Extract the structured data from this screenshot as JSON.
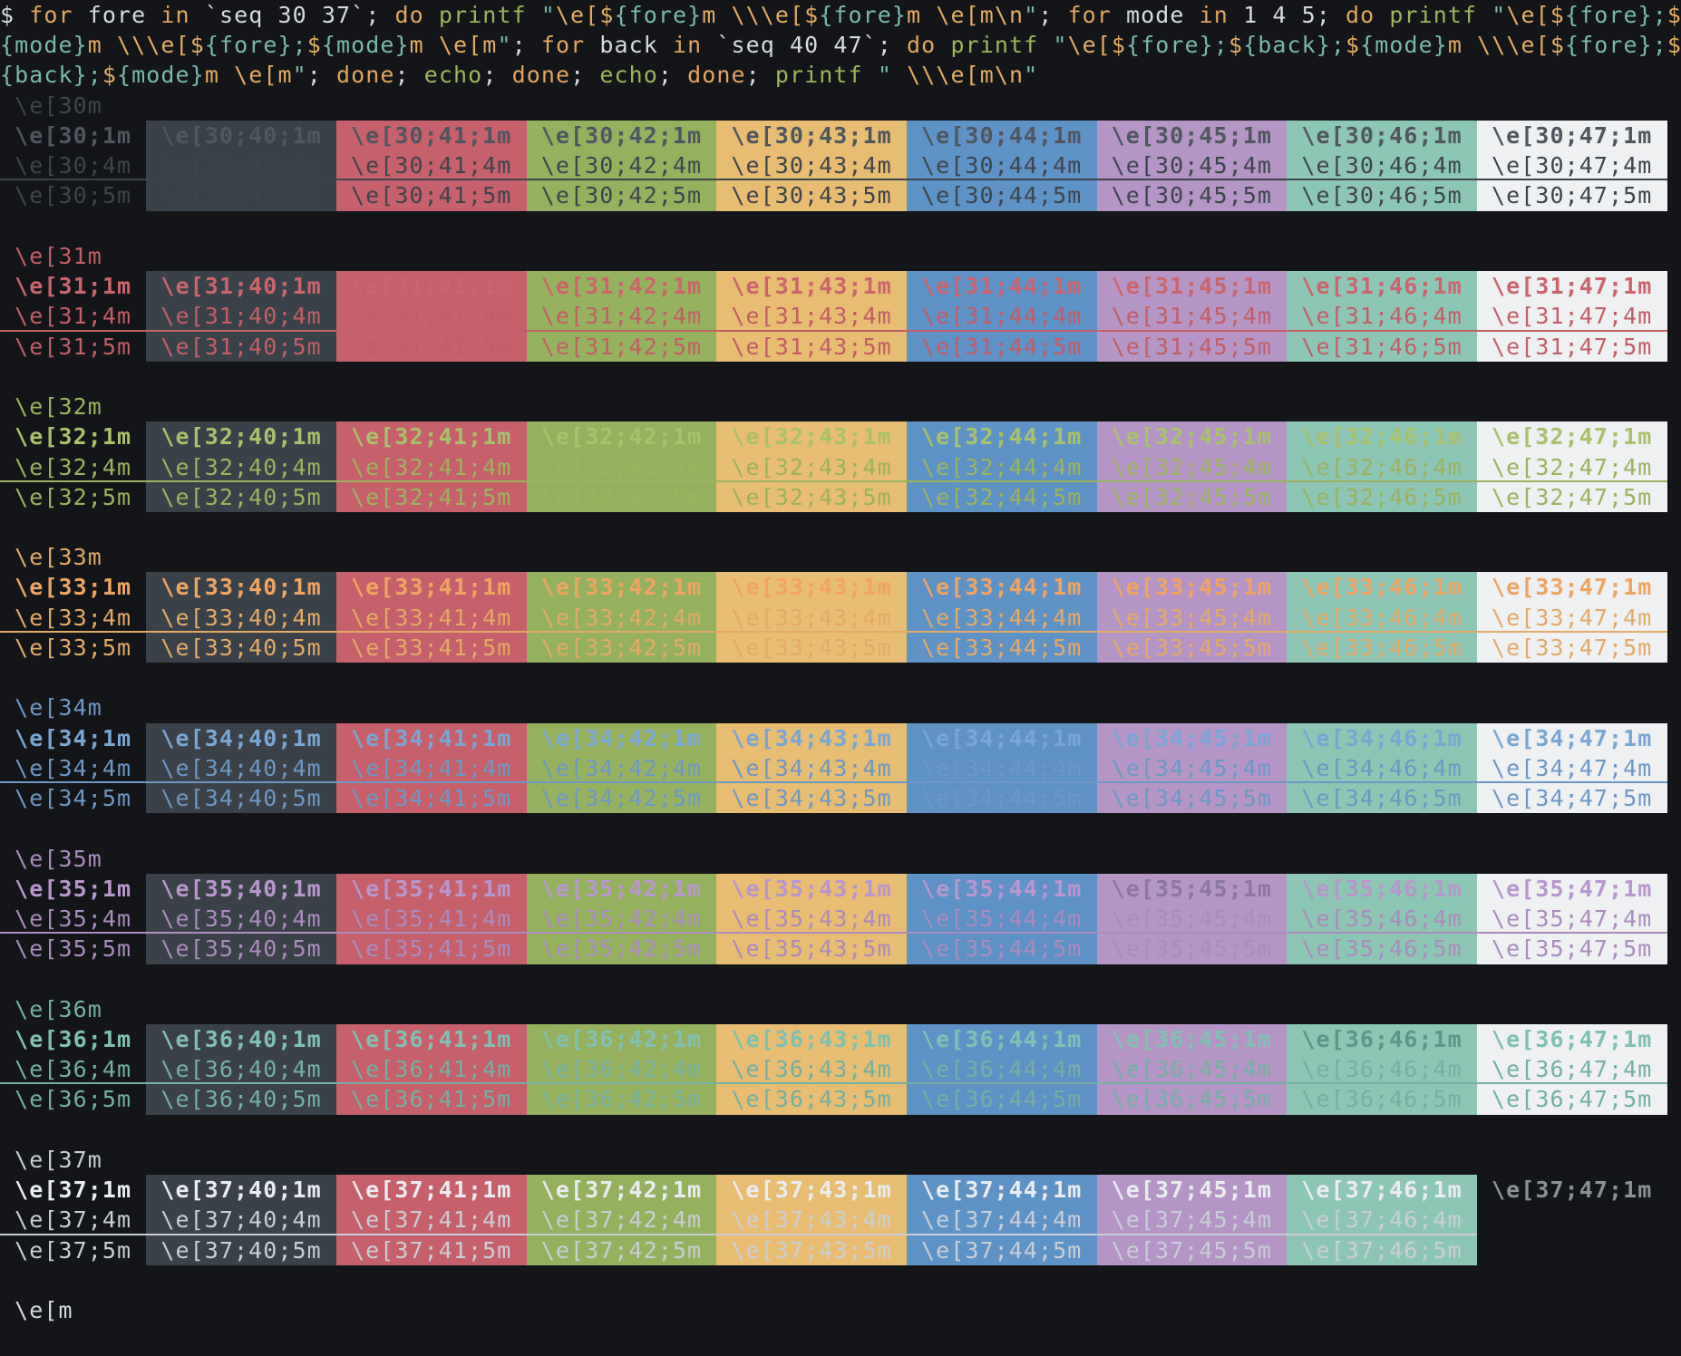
{
  "terminal": {
    "bg": "#131519",
    "fg": "#d6d9df"
  },
  "syntax": {
    "fg": "#d6d9df",
    "kw": "#e2a45f",
    "cmd": "#9fb35c",
    "str": "#79b8ab",
    "esc": "#e3ab64"
  },
  "command": {
    "lines": [
      [
        {
          "t": "$ ",
          "c": "fg"
        },
        {
          "t": "for",
          "c": "kw"
        },
        {
          "t": " fore ",
          "c": "fg"
        },
        {
          "t": "in",
          "c": "kw"
        },
        {
          "t": " `seq 30 37`; ",
          "c": "fg"
        },
        {
          "t": "do",
          "c": "kw"
        },
        {
          "t": " ",
          "c": "fg"
        },
        {
          "t": "printf",
          "c": "cmd"
        },
        {
          "t": " ",
          "c": "fg"
        },
        {
          "t": "\"",
          "c": "str"
        },
        {
          "t": "\\e[",
          "c": "esc"
        },
        {
          "t": "$",
          "c": "esc"
        },
        {
          "t": "{fore}",
          "c": "str"
        },
        {
          "t": "m",
          "c": "esc"
        },
        {
          "t": " ",
          "c": "str"
        },
        {
          "t": "\\\\\\e[",
          "c": "esc"
        },
        {
          "t": "$",
          "c": "esc"
        },
        {
          "t": "{fore}",
          "c": "str"
        },
        {
          "t": "m",
          "c": "esc"
        },
        {
          "t": " ",
          "c": "str"
        },
        {
          "t": "\\e[m",
          "c": "esc"
        },
        {
          "t": "\\n",
          "c": "esc"
        },
        {
          "t": "\"",
          "c": "str"
        },
        {
          "t": "; ",
          "c": "fg"
        },
        {
          "t": "for",
          "c": "kw"
        },
        {
          "t": " mode ",
          "c": "fg"
        },
        {
          "t": "in",
          "c": "kw"
        },
        {
          "t": " 1 4 5; ",
          "c": "fg"
        },
        {
          "t": "do",
          "c": "kw"
        },
        {
          "t": " ",
          "c": "fg"
        },
        {
          "t": "printf",
          "c": "cmd"
        },
        {
          "t": " ",
          "c": "fg"
        },
        {
          "t": "\"",
          "c": "str"
        },
        {
          "t": "\\e[",
          "c": "esc"
        },
        {
          "t": "$",
          "c": "esc"
        },
        {
          "t": "{fore}",
          "c": "str"
        },
        {
          "t": ";",
          "c": "str"
        },
        {
          "t": "$",
          "c": "esc"
        }
      ],
      [
        {
          "t": "{mode}",
          "c": "str"
        },
        {
          "t": "m",
          "c": "esc"
        },
        {
          "t": " ",
          "c": "str"
        },
        {
          "t": "\\\\\\e[",
          "c": "esc"
        },
        {
          "t": "$",
          "c": "esc"
        },
        {
          "t": "{fore}",
          "c": "str"
        },
        {
          "t": ";",
          "c": "str"
        },
        {
          "t": "$",
          "c": "esc"
        },
        {
          "t": "{mode}",
          "c": "str"
        },
        {
          "t": "m",
          "c": "esc"
        },
        {
          "t": " ",
          "c": "str"
        },
        {
          "t": "\\e[m",
          "c": "esc"
        },
        {
          "t": "\"",
          "c": "str"
        },
        {
          "t": "; ",
          "c": "fg"
        },
        {
          "t": "for",
          "c": "kw"
        },
        {
          "t": " back ",
          "c": "fg"
        },
        {
          "t": "in",
          "c": "kw"
        },
        {
          "t": " `seq 40 47`; ",
          "c": "fg"
        },
        {
          "t": "do",
          "c": "kw"
        },
        {
          "t": " ",
          "c": "fg"
        },
        {
          "t": "printf",
          "c": "cmd"
        },
        {
          "t": " ",
          "c": "fg"
        },
        {
          "t": "\"",
          "c": "str"
        },
        {
          "t": "\\e[",
          "c": "esc"
        },
        {
          "t": "$",
          "c": "esc"
        },
        {
          "t": "{fore}",
          "c": "str"
        },
        {
          "t": ";",
          "c": "str"
        },
        {
          "t": "$",
          "c": "esc"
        },
        {
          "t": "{back}",
          "c": "str"
        },
        {
          "t": ";",
          "c": "str"
        },
        {
          "t": "$",
          "c": "esc"
        },
        {
          "t": "{mode}",
          "c": "str"
        },
        {
          "t": "m",
          "c": "esc"
        },
        {
          "t": " ",
          "c": "str"
        },
        {
          "t": "\\\\\\e[",
          "c": "esc"
        },
        {
          "t": "$",
          "c": "esc"
        },
        {
          "t": "{fore}",
          "c": "str"
        },
        {
          "t": ";",
          "c": "str"
        },
        {
          "t": "$",
          "c": "esc"
        }
      ],
      [
        {
          "t": "{back}",
          "c": "str"
        },
        {
          "t": ";",
          "c": "str"
        },
        {
          "t": "$",
          "c": "esc"
        },
        {
          "t": "{mode}",
          "c": "str"
        },
        {
          "t": "m",
          "c": "esc"
        },
        {
          "t": " ",
          "c": "str"
        },
        {
          "t": "\\e[m",
          "c": "esc"
        },
        {
          "t": "\"",
          "c": "str"
        },
        {
          "t": "; ",
          "c": "fg"
        },
        {
          "t": "done",
          "c": "kw"
        },
        {
          "t": "; ",
          "c": "fg"
        },
        {
          "t": "echo",
          "c": "cmd"
        },
        {
          "t": "; ",
          "c": "fg"
        },
        {
          "t": "done",
          "c": "kw"
        },
        {
          "t": "; ",
          "c": "fg"
        },
        {
          "t": "echo",
          "c": "cmd"
        },
        {
          "t": "; ",
          "c": "fg"
        },
        {
          "t": "done",
          "c": "kw"
        },
        {
          "t": "; ",
          "c": "fg"
        },
        {
          "t": "printf",
          "c": "cmd"
        },
        {
          "t": " ",
          "c": "fg"
        },
        {
          "t": "\" ",
          "c": "str"
        },
        {
          "t": "\\\\\\e[m",
          "c": "esc"
        },
        {
          "t": "\\n",
          "c": "esc"
        },
        {
          "t": "\"",
          "c": "str"
        }
      ]
    ]
  },
  "grid": {
    "fores": [
      30,
      31,
      32,
      33,
      34,
      35,
      36,
      37
    ],
    "modes": [
      1,
      4,
      5
    ],
    "backs": [
      40,
      41,
      42,
      43,
      44,
      45,
      46,
      47
    ],
    "label_plain_fmt": " \\e[{f}m",
    "label_mode_fmt": " \\e[{f};{m}m ",
    "cell_fmt": " \\e[{f};{b};{m}m "
  },
  "palette": {
    "normal": {
      "30": "#3e444c",
      "31": "#c25e66",
      "32": "#9cb35e",
      "33": "#e3aa66",
      "34": "#6d98c5",
      "35": "#aa8cbe",
      "36": "#74b0a3",
      "37": "#c9ced6"
    },
    "bright": {
      "30": "#4f565f",
      "31": "#cb656d",
      "32": "#a9c16a",
      "33": "#efa461",
      "34": "#7aa6d4",
      "35": "#b797cd",
      "36": "#80c0b2",
      "37": "#e9ecf0"
    },
    "bg": {
      "40": "#3b4149",
      "41": "#c6606a",
      "42": "#95b160",
      "43": "#e7bd74",
      "44": "#5f92c5",
      "45": "#b495c6",
      "46": "#8dc6b4",
      "47": "#eef0f2"
    }
  },
  "overrides": {
    "36;46;1": {
      "fg": "#5f9486"
    },
    "35;45;1": {
      "fg": "#8d76a5"
    },
    "37;47;1": {
      "fg": "#8b9199",
      "bg": null
    },
    "37;47;4": {
      "fg": null,
      "bg": null,
      "ul": false
    },
    "37;47;5": {
      "fg": null,
      "bg": null
    }
  },
  "reset_line": " \\e[m"
}
